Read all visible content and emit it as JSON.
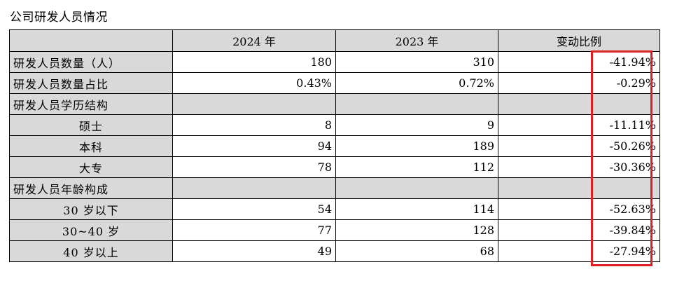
{
  "caption": "公司研发人员情况",
  "table": {
    "headers": [
      "",
      "2024 年",
      "2023 年",
      "变动比例"
    ],
    "rows": [
      {
        "label": "研发人员数量（人）",
        "type": "data",
        "sub": false,
        "y2024": "180",
        "y2023": "310",
        "change": "-41.94%"
      },
      {
        "label": "研发人员数量占比",
        "type": "data",
        "sub": false,
        "y2024": "0.43%",
        "y2023": "0.72%",
        "change": "-0.29%"
      },
      {
        "label": "研发人员学历结构",
        "type": "category",
        "sub": false,
        "y2024": "",
        "y2023": "",
        "change": ""
      },
      {
        "label": "硕士",
        "type": "data",
        "sub": true,
        "y2024": "8",
        "y2023": "9",
        "change": "-11.11%"
      },
      {
        "label": "本科",
        "type": "data",
        "sub": true,
        "y2024": "94",
        "y2023": "189",
        "change": "-50.26%"
      },
      {
        "label": "大专",
        "type": "data",
        "sub": true,
        "y2024": "78",
        "y2023": "112",
        "change": "-30.36%"
      },
      {
        "label": "研发人员年龄构成",
        "type": "category",
        "sub": false,
        "y2024": "",
        "y2023": "",
        "change": ""
      },
      {
        "label": "30 岁以下",
        "type": "data",
        "sub": true,
        "y2024": "54",
        "y2023": "114",
        "change": "-52.63%"
      },
      {
        "label": "30~40 岁",
        "type": "data",
        "sub": true,
        "y2024": "77",
        "y2023": "128",
        "change": "-39.84%"
      },
      {
        "label": "40 岁以上",
        "type": "data",
        "sub": true,
        "y2024": "49",
        "y2023": "68",
        "change": "-27.94%"
      }
    ]
  },
  "highlight": {
    "color": "#e02020",
    "target_column": "变动比例"
  }
}
